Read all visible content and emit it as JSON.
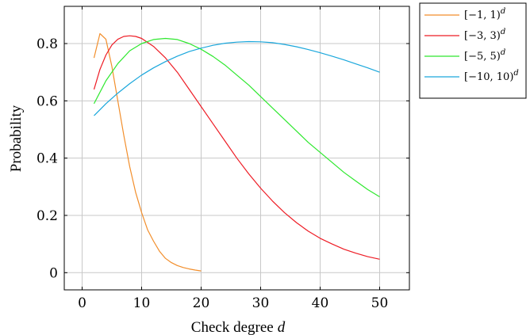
{
  "chart_data": {
    "type": "line",
    "xlabel": "Check degree",
    "xlabel_var": "d",
    "ylabel": "Probability",
    "xlim": [
      -3,
      55
    ],
    "ylim": [
      -0.06,
      0.93
    ],
    "xticks": [
      0,
      10,
      20,
      30,
      40,
      50
    ],
    "yticks": [
      0,
      0.2,
      0.4,
      0.6,
      0.8
    ],
    "ytick_labels": [
      "0",
      "0.2",
      "0.4",
      "0.6",
      "0.8"
    ],
    "grid": true,
    "legend_position": "outside-top-right",
    "series": [
      {
        "name": "[−1, 1)",
        "name_sup": "d",
        "color": "#f28e2b",
        "x": [
          2,
          3,
          4,
          5,
          6,
          7,
          8,
          9,
          10,
          11,
          12,
          13,
          14,
          15,
          16,
          17,
          18,
          19,
          20
        ],
        "y": [
          0.75,
          0.835,
          0.815,
          0.72,
          0.6,
          0.48,
          0.37,
          0.28,
          0.21,
          0.15,
          0.11,
          0.075,
          0.05,
          0.035,
          0.025,
          0.018,
          0.013,
          0.009,
          0.006
        ]
      },
      {
        "name": "[−3, 3)",
        "name_sup": "d",
        "color": "#ee1c25",
        "x": [
          2,
          3,
          4,
          5,
          6,
          7,
          8,
          9,
          10,
          12,
          14,
          16,
          18,
          20,
          22,
          24,
          26,
          28,
          30,
          32,
          34,
          36,
          38,
          40,
          42,
          44,
          46,
          48,
          50
        ],
        "y": [
          0.64,
          0.71,
          0.76,
          0.795,
          0.815,
          0.825,
          0.827,
          0.825,
          0.818,
          0.79,
          0.75,
          0.7,
          0.64,
          0.58,
          0.52,
          0.46,
          0.4,
          0.345,
          0.295,
          0.25,
          0.21,
          0.175,
          0.145,
          0.12,
          0.1,
          0.082,
          0.068,
          0.056,
          0.047
        ]
      },
      {
        "name": "[−5, 5)",
        "name_sup": "d",
        "color": "#2ee82e",
        "x": [
          2,
          4,
          6,
          8,
          10,
          12,
          14,
          16,
          18,
          20,
          22,
          24,
          26,
          28,
          30,
          32,
          34,
          36,
          38,
          40,
          42,
          44,
          46,
          48,
          50
        ],
        "y": [
          0.59,
          0.67,
          0.73,
          0.775,
          0.8,
          0.814,
          0.818,
          0.814,
          0.8,
          0.78,
          0.755,
          0.725,
          0.69,
          0.655,
          0.615,
          0.575,
          0.535,
          0.495,
          0.455,
          0.42,
          0.385,
          0.35,
          0.32,
          0.29,
          0.265
        ]
      },
      {
        "name": "[−10, 10)",
        "name_sup": "d",
        "color": "#1aa7dc",
        "x": [
          2,
          4,
          6,
          8,
          10,
          12,
          14,
          16,
          18,
          20,
          22,
          24,
          26,
          28,
          30,
          32,
          34,
          36,
          38,
          40,
          42,
          44,
          46,
          48,
          50
        ],
        "y": [
          0.548,
          0.59,
          0.627,
          0.66,
          0.69,
          0.715,
          0.737,
          0.756,
          0.772,
          0.784,
          0.794,
          0.801,
          0.805,
          0.807,
          0.806,
          0.803,
          0.797,
          0.789,
          0.779,
          0.768,
          0.756,
          0.743,
          0.729,
          0.715,
          0.7
        ]
      }
    ]
  }
}
